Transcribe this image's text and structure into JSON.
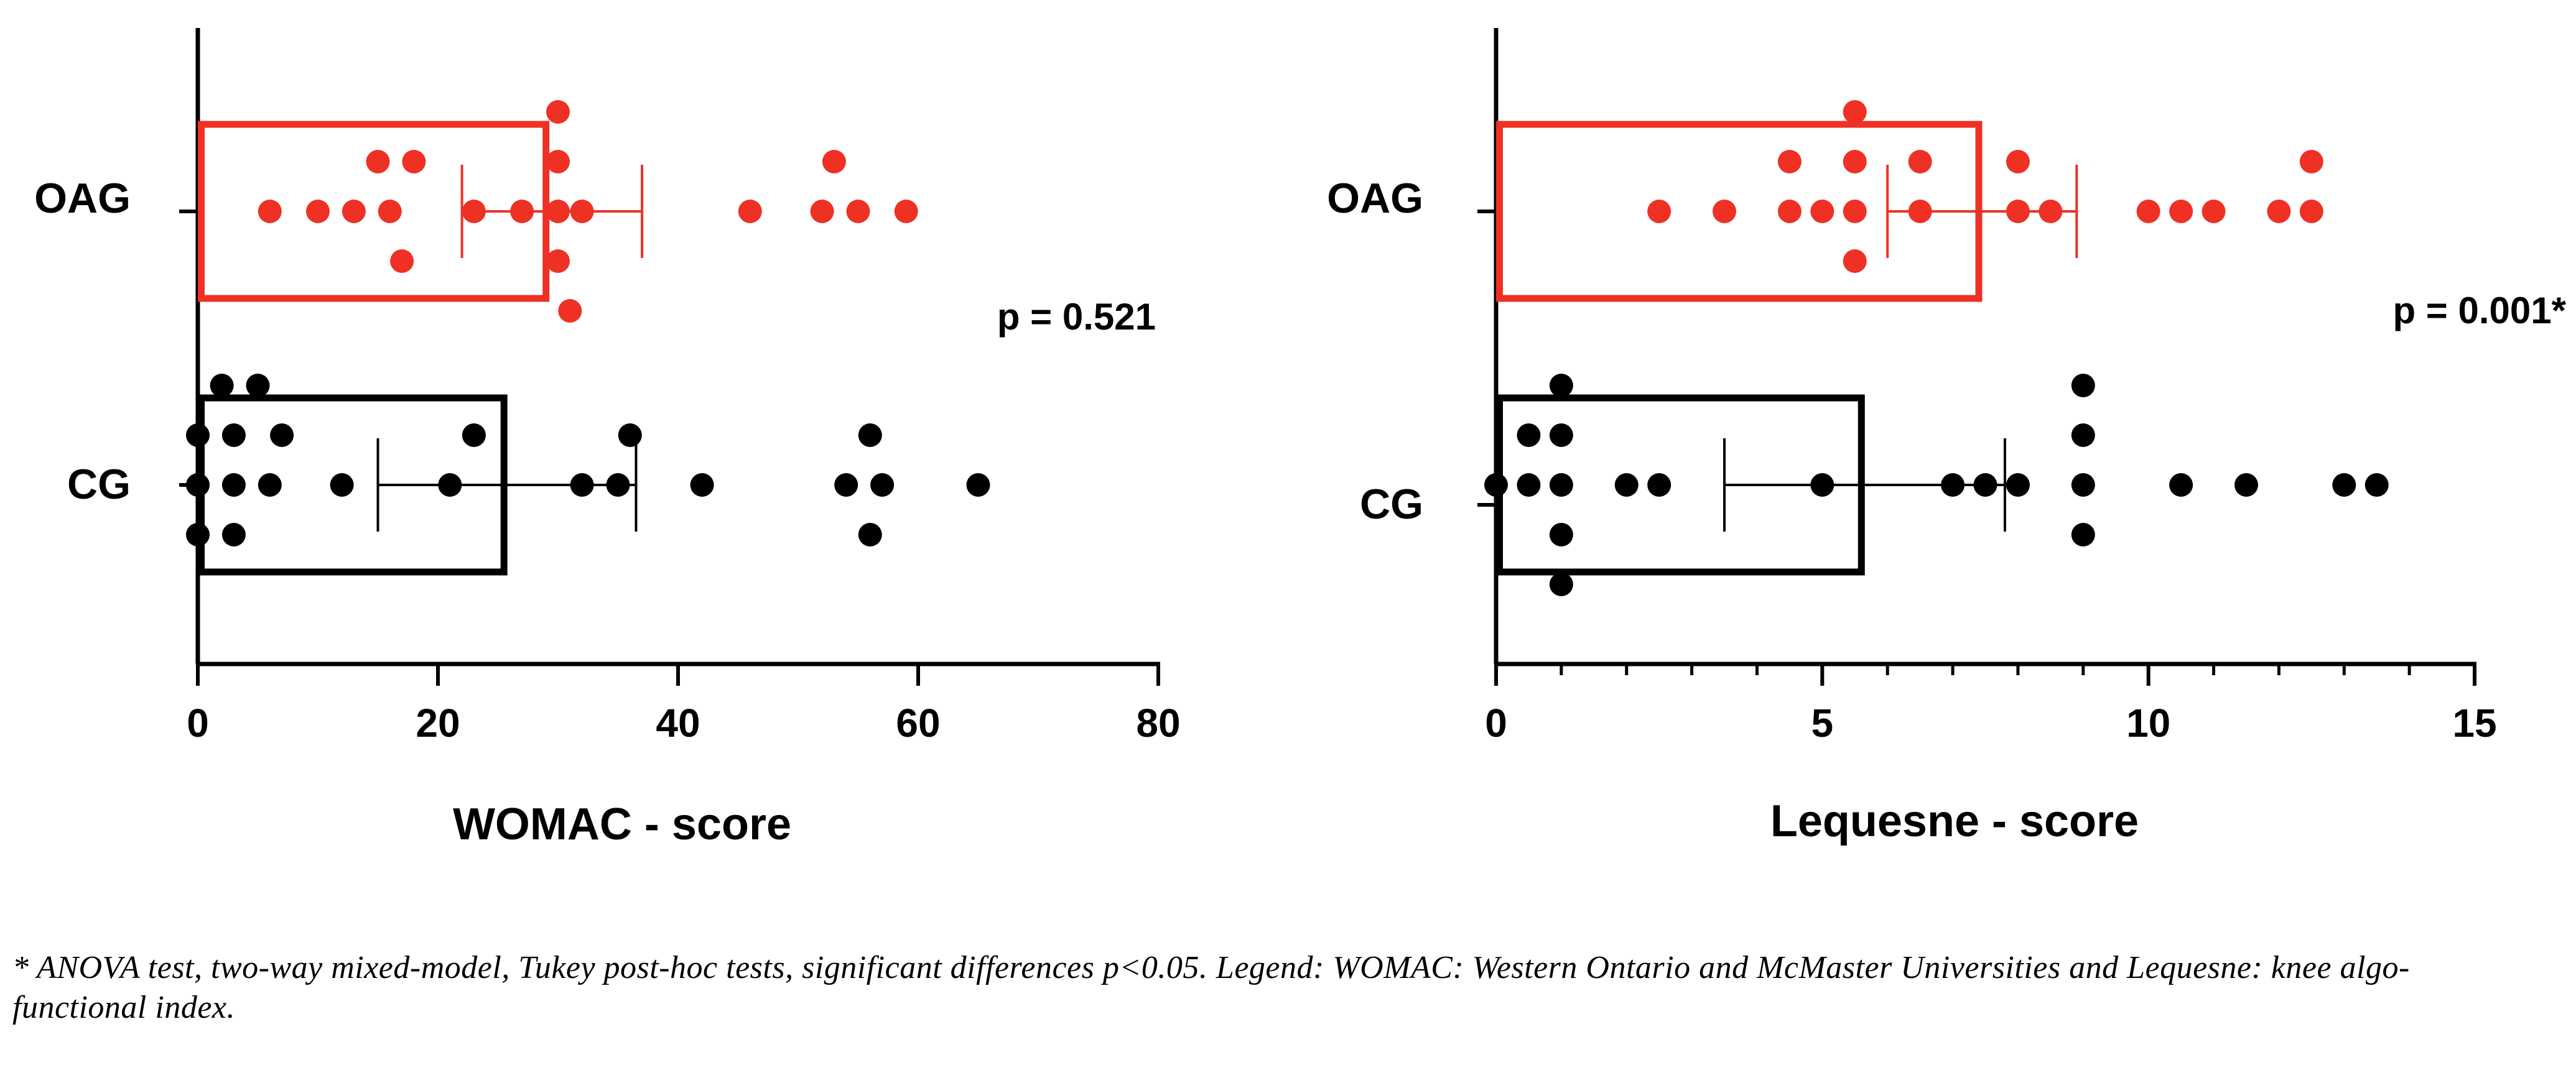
{
  "chart_data": [
    {
      "type": "bar",
      "orientation": "horizontal",
      "categories": [
        "OAG",
        "CG"
      ],
      "xlabel": "WOMAC - score",
      "xlim": [
        0,
        80
      ],
      "xticks": [
        0,
        20,
        40,
        60,
        80
      ],
      "annotation": "p = 0.521",
      "series": [
        {
          "category": "OAG",
          "color": "#ee3124",
          "mean": 29,
          "error": [
            22,
            37
          ],
          "points": [
            6,
            10,
            13,
            15,
            16,
            17,
            18,
            23,
            27,
            30,
            30,
            30,
            30,
            31,
            32,
            46,
            52,
            53,
            55,
            59
          ]
        },
        {
          "category": "CG",
          "color": "#000000",
          "mean": 25.5,
          "error": [
            15,
            36.5
          ],
          "points": [
            0,
            0,
            0,
            2,
            3,
            3,
            3,
            5,
            6,
            7,
            12,
            21,
            23,
            32,
            35,
            36,
            42,
            54,
            56,
            56,
            57,
            65
          ]
        }
      ]
    },
    {
      "type": "bar",
      "orientation": "horizontal",
      "categories": [
        "OAG",
        "CG"
      ],
      "xlabel": "Lequesne - score",
      "xlim": [
        0,
        15
      ],
      "xticks": [
        0,
        5,
        10,
        15
      ],
      "annotation": "p = 0.001*",
      "series": [
        {
          "category": "OAG",
          "color": "#ee3124",
          "mean": 7.4,
          "error": [
            6,
            8.9
          ],
          "points": [
            2.5,
            3.5,
            4.5,
            4.5,
            5,
            5.5,
            5.5,
            5.5,
            5.5,
            6.5,
            6.5,
            8,
            8,
            8.5,
            10,
            10.5,
            11,
            12,
            12.5,
            12.5
          ]
        },
        {
          "category": "CG",
          "color": "#000000",
          "mean": 5.6,
          "error": [
            3.5,
            7.8
          ],
          "points": [
            0,
            0.5,
            0.5,
            1,
            1,
            1,
            1,
            1,
            2,
            2.5,
            5,
            7,
            7.5,
            8,
            9,
            9,
            9,
            9,
            10.5,
            11.5,
            13,
            13.5
          ]
        }
      ]
    }
  ],
  "footnote": "* ANOVA test, two-way mixed-model, Tukey post-hoc tests, significant differences p<0.05. Legend: WOMAC: Western Ontario and McMaster Universities and Lequesne: knee algo-functional index."
}
